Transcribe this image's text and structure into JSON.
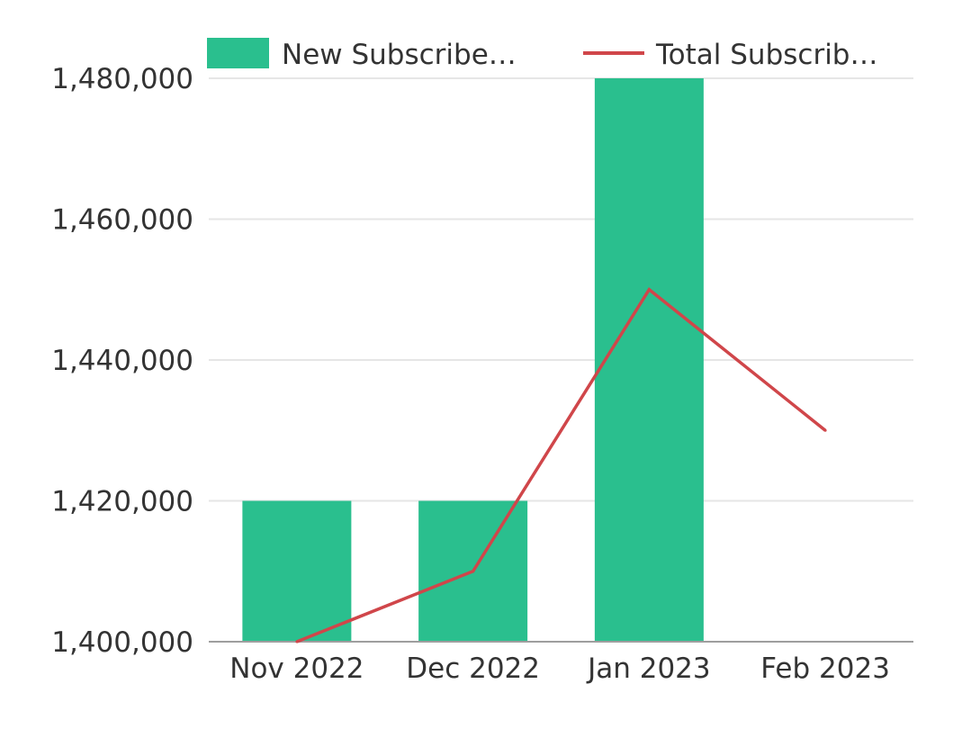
{
  "chart_data": {
    "type": "bar",
    "categories": [
      "Nov 2022",
      "Dec 2022",
      "Jan 2023",
      "Feb 2023"
    ],
    "series": [
      {
        "name": "New Subscribe…",
        "type": "bar",
        "color": "#2abf8e",
        "values": [
          1420000,
          1420000,
          1480000,
          null
        ]
      },
      {
        "name": "Total Subscrib…",
        "type": "line",
        "color": "#d0464a",
        "values": [
          1400000,
          1410000,
          1450000,
          1430000
        ]
      }
    ],
    "y_ticks": [
      "1,400,000",
      "1,420,000",
      "1,440,000",
      "1,460,000",
      "1,480,000"
    ],
    "y_tick_values": [
      1400000,
      1420000,
      1440000,
      1460000,
      1480000
    ],
    "ylim": [
      1400000,
      1480000
    ],
    "grid": true,
    "legend_position": "top",
    "colors": {
      "grid": "#e6e6e6",
      "axis": "#9e9e9e"
    }
  }
}
